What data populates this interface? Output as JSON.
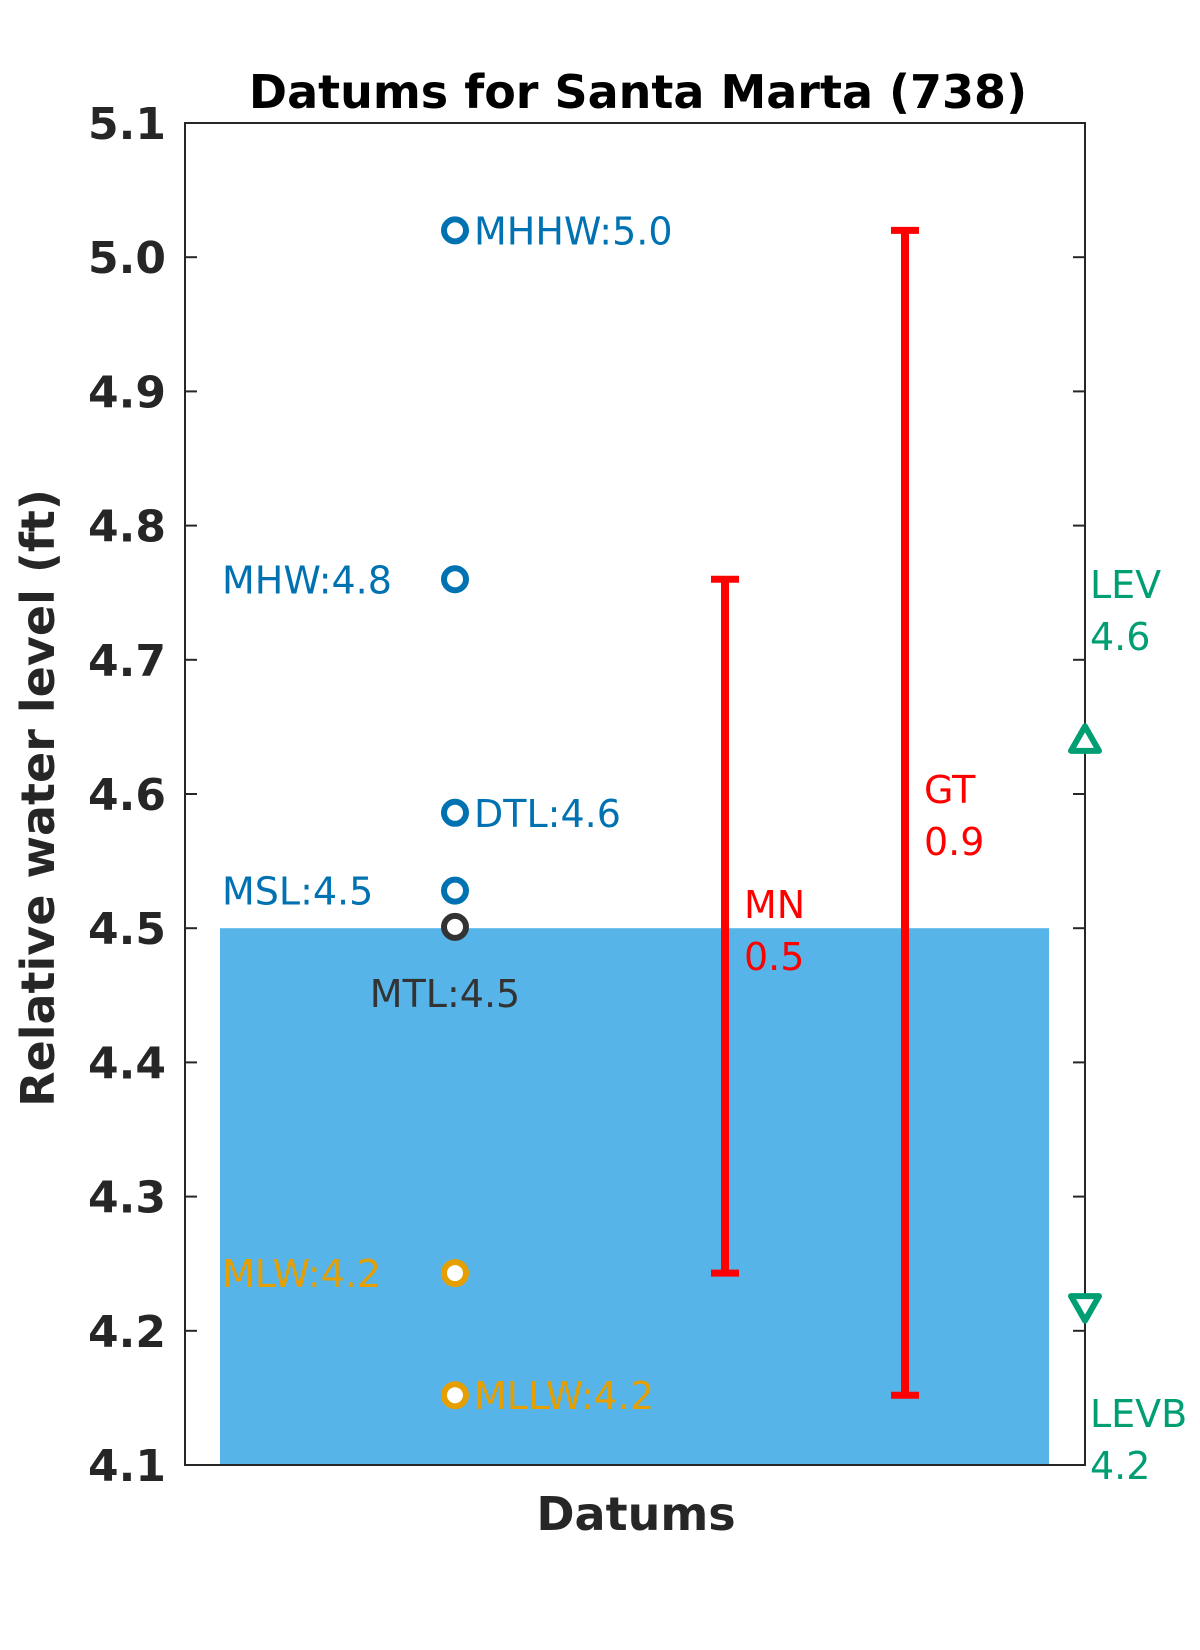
{
  "chart_data": {
    "type": "scatter",
    "title": "Datums for Santa Marta (738)",
    "xlabel": "Datums",
    "ylabel": "Relative water level (ft)",
    "ylim": [
      4.1,
      5.1
    ],
    "yticks": [
      "4.1",
      "4.2",
      "4.3",
      "4.4",
      "4.5",
      "4.6",
      "4.7",
      "4.8",
      "4.9",
      "5.0",
      "5.1"
    ],
    "grid": false,
    "water_fill": {
      "from": 4.1,
      "to": 4.5,
      "color": "#56B4E9"
    },
    "datums": [
      {
        "name": "MHHW",
        "label": "MHHW:5.0",
        "value": 5.02,
        "color": "#0072B2",
        "label_side": "right"
      },
      {
        "name": "MHW",
        "label": "MHW:4.8",
        "value": 4.76,
        "color": "#0072B2",
        "label_side": "left"
      },
      {
        "name": "DTL",
        "label": "DTL:4.6",
        "value": 4.586,
        "color": "#0072B2",
        "label_side": "right"
      },
      {
        "name": "MSL",
        "label": "MSL:4.5",
        "value": 4.528,
        "color": "#0072B2",
        "label_side": "left"
      },
      {
        "name": "MTL",
        "label": "MTL:4.5",
        "value": 4.501,
        "color": "#333333",
        "label_side": "below"
      },
      {
        "name": "MLW",
        "label": "MLW:4.2",
        "value": 4.243,
        "color": "#E69F00",
        "label_side": "left"
      },
      {
        "name": "MLLW",
        "label": "MLLW:4.2",
        "value": 4.152,
        "color": "#E69F00",
        "label_side": "right"
      }
    ],
    "ranges": [
      {
        "name": "MN",
        "label_lines": [
          "MN",
          "0.5"
        ],
        "from": 4.243,
        "to": 4.76,
        "color": "#FF0000"
      },
      {
        "name": "GT",
        "label_lines": [
          "GT",
          "0.9"
        ],
        "from": 4.152,
        "to": 5.02,
        "color": "#FF0000"
      }
    ],
    "levels": [
      {
        "name": "LEV",
        "label_lines": [
          "LEV",
          "4.6"
        ],
        "value": 4.64,
        "marker": "triangle-up",
        "color": "#009E73"
      },
      {
        "name": "LEVB",
        "label_lines": [
          "LEVB",
          "4.2"
        ],
        "value": 4.218,
        "marker": "triangle-down",
        "color": "#009E73"
      }
    ]
  }
}
